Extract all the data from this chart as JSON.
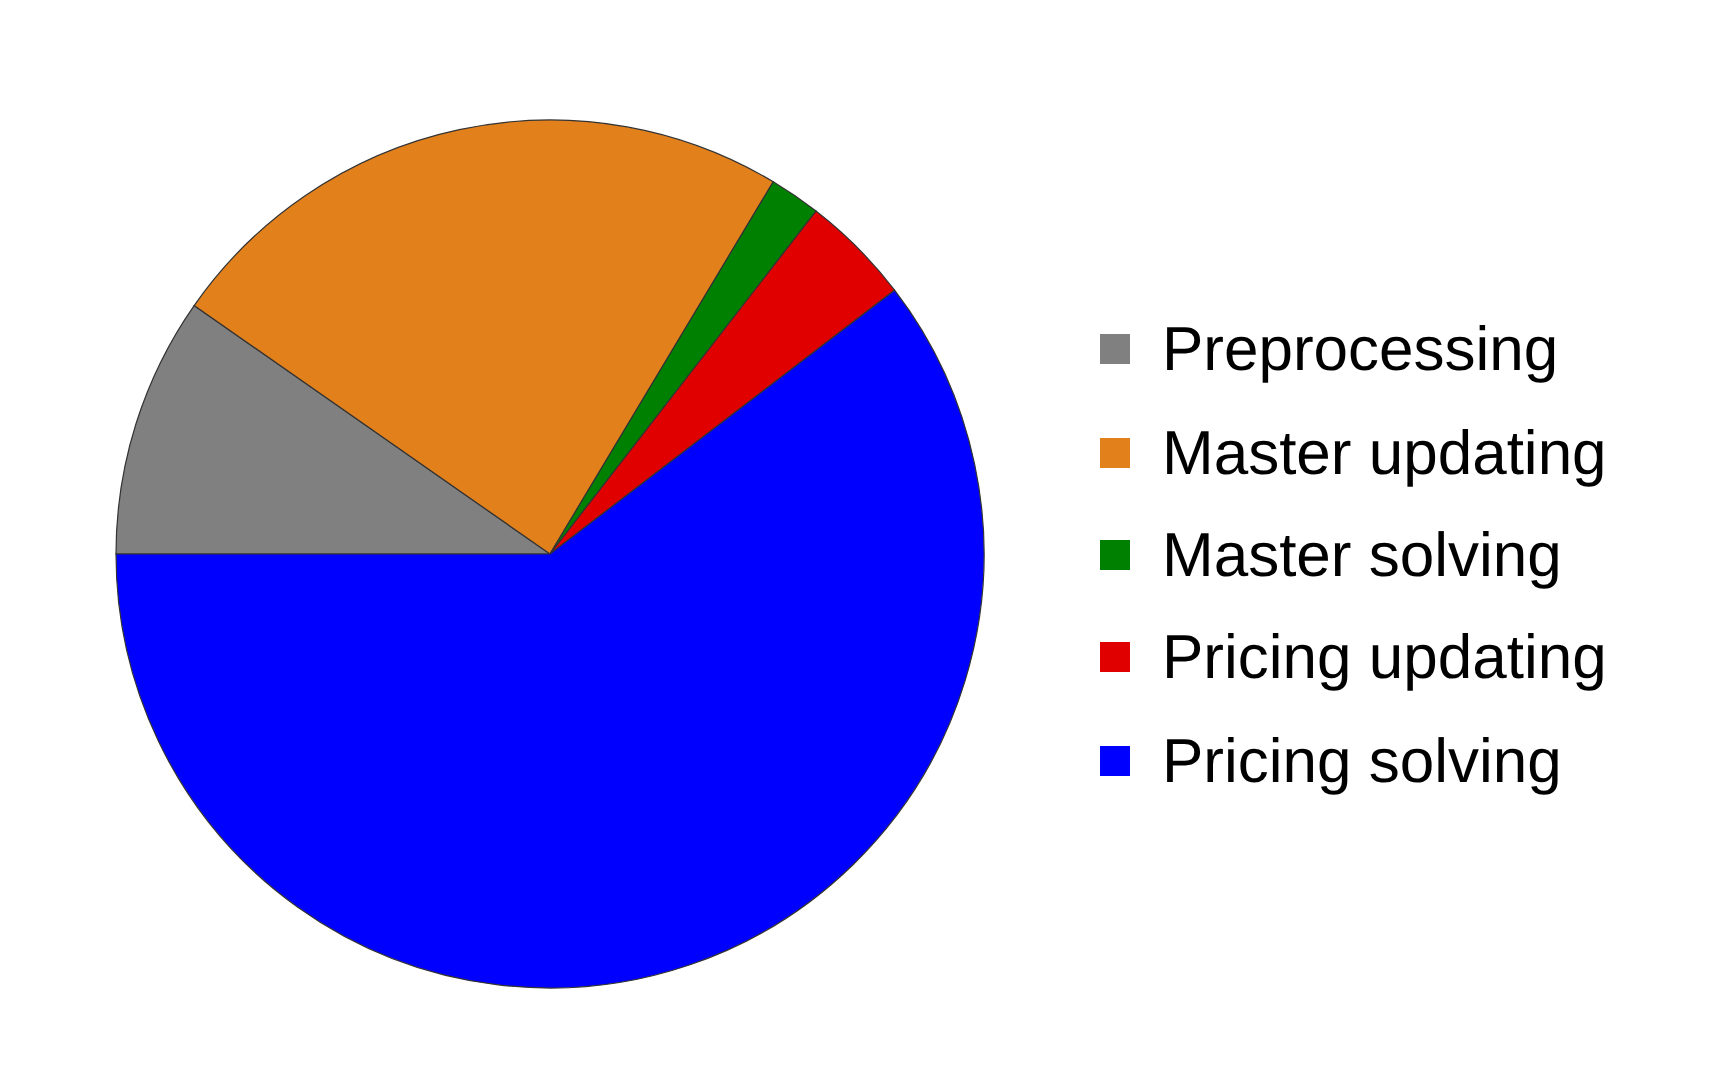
{
  "chart_data": {
    "type": "pie",
    "categories": [
      "Preprocessing",
      "Master updating",
      "Master solving",
      "Pricing updating",
      "Pricing solving"
    ],
    "values": [
      9.7,
      23.9,
      1.9,
      4.1,
      60.4
    ],
    "colors": [
      "#808080",
      "#e2801c",
      "#008000",
      "#e00000",
      "#0000ff"
    ],
    "legend": "right"
  }
}
